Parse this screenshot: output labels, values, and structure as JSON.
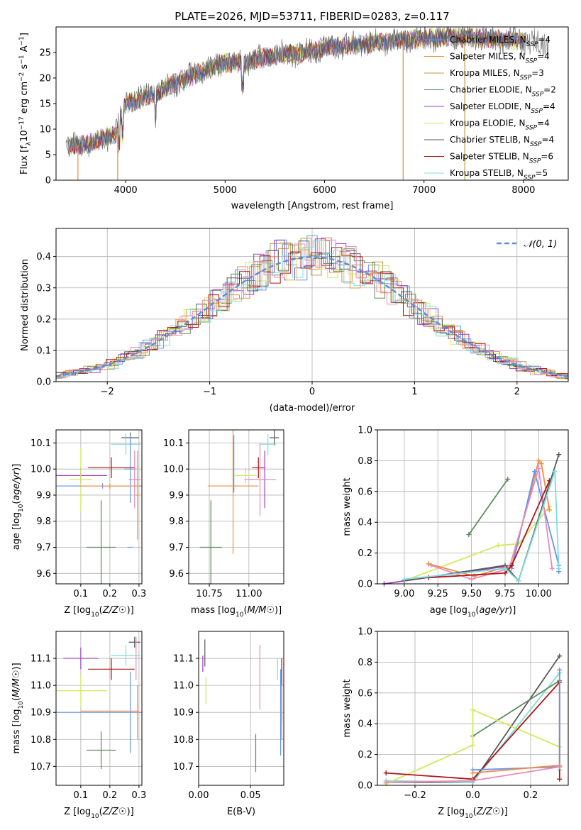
{
  "colors": {
    "Chabrier MILES": "#6495ed",
    "Salpeter MILES": "#f28c45",
    "Kroupa MILES": "#c29a3a",
    "Chabrier ELODIE": "#5c8c5c",
    "Salpeter ELODIE": "#9a3ec0",
    "Kroupa ELODIE": "#d4e85a",
    "Chabrier STELIB": "#595959",
    "Salpeter STELIB": "#b01414",
    "Kroupa STELIB": "#7fdcdc",
    "pink": "#e88ab8",
    "normal": "#5b8fd6"
  },
  "chart_data": [
    {
      "id": "spectrum",
      "type": "line",
      "title": "PLATE=2026, MJD=53711, FIBERID=0283, z=0.117",
      "xlabel": "wavelength [Angstrom, rest frame]",
      "ylabel_parts": [
        "Flux [f",
        "λ",
        "10",
        "−17",
        " erg cm",
        "−2",
        " s",
        "−1",
        " A",
        "−1",
        "]"
      ],
      "xlim": [
        3300,
        8450
      ],
      "ylim": [
        0,
        30
      ],
      "xticks": [
        4000,
        5000,
        6000,
        7000,
        8000
      ],
      "yticks": [
        0,
        5,
        10,
        15,
        20,
        25
      ],
      "grid": false,
      "legend_position": "right",
      "legend": [
        {
          "name": "Chabrier MILES",
          "n": "4"
        },
        {
          "name": "Salpeter MILES",
          "n": "4"
        },
        {
          "name": "Kroupa MILES",
          "n": "3"
        },
        {
          "name": "Chabrier ELODIE",
          "n": "2"
        },
        {
          "name": "Salpeter ELODIE",
          "n": "4"
        },
        {
          "name": "Kroupa ELODIE",
          "n": "4"
        },
        {
          "name": "Chabrier STELIB",
          "n": "4"
        },
        {
          "name": "Salpeter STELIB",
          "n": "6"
        },
        {
          "name": "Kroupa STELIB",
          "n": "5"
        }
      ],
      "legend_sub": "SSP",
      "continuum_x": [
        3400,
        3600,
        3900,
        4000,
        4300,
        4500,
        4800,
        5000,
        5200,
        5500,
        5800,
        6000,
        6300,
        6600,
        6900,
        7200,
        7500,
        7800,
        8100,
        8250
      ],
      "continuum_y": [
        6.5,
        7,
        9,
        15,
        17,
        19,
        21.5,
        23,
        23,
        24.5,
        25,
        26,
        26.5,
        27,
        27.5,
        28,
        28,
        27.5,
        27,
        26.5
      ],
      "spikes": [
        {
          "x": 3520,
          "name": "Salpeter MILES"
        },
        {
          "x": 3920,
          "name": "Kroupa MILES"
        },
        {
          "x": 6790,
          "name": "Kroupa MILES"
        },
        {
          "x": 7410,
          "name": "Kroupa MILES"
        }
      ]
    },
    {
      "id": "residual-histogram",
      "type": "line",
      "xlabel": "(data-model)/error",
      "ylabel": "Normed distribution",
      "xlim": [
        -2.5,
        2.5
      ],
      "ylim": [
        0,
        0.49
      ],
      "xticks": [
        -2,
        -1,
        0,
        1,
        2
      ],
      "yticks": [
        0,
        0.1,
        0.2,
        0.3,
        0.4
      ],
      "grid": true,
      "legend_position": "top-right",
      "legend": [
        {
          "name": "𝒩(0, 1)"
        }
      ],
      "bin_width": 0.1
    },
    {
      "id": "age-vs-Z",
      "type": "scatter",
      "xlabel": "Z [log10(Z/Z☉)]",
      "ylabel": "age  [log10(age/yr)]",
      "xlim": [
        0.015,
        0.31
      ],
      "ylim": [
        9.56,
        10.15
      ],
      "xticks": [
        0.1,
        0.2,
        0.3
      ],
      "yticks": [
        9.6,
        9.7,
        9.8,
        9.9,
        10.0,
        10.1
      ],
      "grid": true,
      "points": [
        {
          "x": 0.27,
          "y": 10.12,
          "xerr": 0.03,
          "yerr": 0.02,
          "name": "Chabrier STELIB"
        },
        {
          "x": 0.255,
          "y": 10.095,
          "xerr": 0.05,
          "yerr": 0.04,
          "name": "Kroupa STELIB"
        },
        {
          "x": 0.27,
          "y": 10.0,
          "xerr": 0.02,
          "yerr": 0.13,
          "name": "Chabrier MILES"
        },
        {
          "x": 0.205,
          "y": 10.005,
          "xerr": 0.08,
          "yerr": 0.04,
          "name": "Salpeter STELIB"
        },
        {
          "x": 0.285,
          "y": 9.96,
          "xerr": 0.02,
          "yerr": 0.11,
          "name": "pink"
        },
        {
          "x": 0.1,
          "y": 9.975,
          "xerr": 0.09,
          "yerr": 0.03,
          "name": "Salpeter ELODIE"
        },
        {
          "x": 0.1,
          "y": 9.96,
          "xerr": 0.04,
          "yerr": 0.12,
          "name": "Kroupa ELODIE"
        },
        {
          "x": 0.175,
          "y": 9.935,
          "xerr": 0.16,
          "yerr": 0.01,
          "name": "Chabrier MILES"
        },
        {
          "x": 0.2,
          "y": 9.935,
          "xerr": 0.1,
          "yerr": 0.01,
          "name": "Salpeter MILES"
        },
        {
          "x": 0.295,
          "y": 9.9,
          "xerr": 0.005,
          "yerr": 0.17,
          "name": "Salpeter MILES"
        },
        {
          "x": 0.17,
          "y": 9.7,
          "xerr": 0.05,
          "yerr": 0.18,
          "name": "Chabrier ELODIE"
        },
        {
          "x": 0.27,
          "y": 9.7,
          "xerr": 0.01,
          "yerr": 0.0,
          "name": "Chabrier MILES"
        }
      ]
    },
    {
      "id": "age-vs-mass",
      "type": "scatter",
      "xlabel": "mass [log10(M/M☉)]",
      "ylabel": "",
      "xlim": [
        10.62,
        11.22
      ],
      "ylim": [
        9.56,
        10.15
      ],
      "xticks": [
        10.75,
        11.0
      ],
      "yticks": [
        9.6,
        9.7,
        9.8,
        9.9,
        10.0,
        10.1
      ],
      "grid": true,
      "points": [
        {
          "x": 11.16,
          "y": 10.12,
          "xerr": 0.03,
          "yerr": 0.03,
          "name": "Chabrier STELIB"
        },
        {
          "x": 11.12,
          "y": 10.095,
          "xerr": 0.05,
          "yerr": 0.04,
          "name": "Kroupa STELIB"
        },
        {
          "x": 10.905,
          "y": 10.02,
          "xerr": 0.0,
          "yerr": 0.11,
          "name": "Chabrier MILES"
        },
        {
          "x": 11.06,
          "y": 10.005,
          "xerr": 0.04,
          "yerr": 0.04,
          "name": "Salpeter STELIB"
        },
        {
          "x": 11.1,
          "y": 9.96,
          "xerr": 0.0,
          "yerr": 0.11,
          "name": "Salpeter ELODIE"
        },
        {
          "x": 11.07,
          "y": 9.96,
          "xerr": 0.1,
          "yerr": 0.14,
          "name": "pink"
        },
        {
          "x": 10.98,
          "y": 9.975,
          "xerr": 0.07,
          "yerr": 0.03,
          "name": "Kroupa ELODIE"
        },
        {
          "x": 10.9,
          "y": 9.935,
          "xerr": 0.16,
          "yerr": 0.26,
          "name": "Salpeter MILES"
        },
        {
          "x": 10.76,
          "y": 9.7,
          "xerr": 0.07,
          "yerr": 0.18,
          "name": "Chabrier ELODIE"
        }
      ]
    },
    {
      "id": "mass-weight-vs-age",
      "type": "line",
      "xlabel": "age  [log10(age/yr)]",
      "ylabel": "mass weight",
      "xlim": [
        8.8,
        10.22
      ],
      "ylim": [
        0,
        1
      ],
      "xticks": [
        9.0,
        9.25,
        9.5,
        9.75,
        10.0
      ],
      "yticks": [
        0,
        0.2,
        0.4,
        0.6,
        0.8,
        1.0
      ],
      "grid": true,
      "series": [
        {
          "name": "Chabrier ELODIE",
          "x": [
            9.48,
            9.77
          ],
          "y": [
            0.32,
            0.68
          ]
        },
        {
          "name": "Salpeter ELODIE",
          "x": [
            8.85,
            9.8
          ],
          "y": [
            0.0,
            0.12
          ]
        },
        {
          "name": "Kroupa ELODIE",
          "x": [
            9.0,
            9.7,
            9.85,
            10.08
          ],
          "y": [
            0.02,
            0.25,
            0.26,
            0.5
          ]
        },
        {
          "name": "Salpeter MILES",
          "x": [
            9.18,
            9.52,
            9.8,
            10.0,
            10.02,
            10.08
          ],
          "y": [
            0.13,
            0.05,
            0.12,
            0.8,
            0.78,
            0.48
          ]
        },
        {
          "name": "Chabrier MILES",
          "x": [
            9.8,
            9.97,
            10.15,
            10.15
          ],
          "y": [
            0.1,
            0.73,
            0.12,
            0.08
          ]
        },
        {
          "name": "pink",
          "x": [
            9.2,
            9.5,
            9.78,
            10.0,
            10.1
          ],
          "y": [
            0.12,
            0.03,
            0.1,
            0.75,
            0.1
          ]
        },
        {
          "name": "Salpeter STELIB",
          "x": [
            9.18,
            9.75,
            9.8,
            10.08
          ],
          "y": [
            0.04,
            0.07,
            0.12,
            0.67
          ]
        },
        {
          "name": "Chabrier STELIB",
          "x": [
            9.0,
            9.75,
            9.85,
            10.15
          ],
          "y": [
            0.02,
            0.12,
            0.02,
            0.84
          ]
        },
        {
          "name": "Kroupa STELIB",
          "x": [
            9.0,
            9.75,
            9.85,
            10.12,
            10.15
          ],
          "y": [
            0.03,
            0.1,
            0.02,
            0.73,
            0.1
          ]
        }
      ]
    },
    {
      "id": "mass-vs-Z",
      "type": "scatter",
      "xlabel": "Z [log10(Z/Z☉)]",
      "ylabel": "mass [log10(M/M☉)]",
      "xlim": [
        0.015,
        0.31
      ],
      "ylim": [
        10.63,
        11.2
      ],
      "xticks": [
        0.1,
        0.2,
        0.3
      ],
      "yticks": [
        10.7,
        10.8,
        10.9,
        11.0,
        11.1
      ],
      "grid": true,
      "points": [
        {
          "x": 0.285,
          "y": 11.16,
          "xerr": 0.02,
          "yerr": 0.02,
          "name": "Chabrier STELIB"
        },
        {
          "x": 0.255,
          "y": 11.11,
          "xerr": 0.05,
          "yerr": 0.04,
          "name": "Kroupa STELIB"
        },
        {
          "x": 0.1,
          "y": 11.1,
          "xerr": 0.06,
          "yerr": 0.04,
          "name": "Salpeter ELODIE"
        },
        {
          "x": 0.29,
          "y": 11.1,
          "xerr": 0.0,
          "yerr": 0.08,
          "name": "pink"
        },
        {
          "x": 0.205,
          "y": 11.06,
          "xerr": 0.08,
          "yerr": 0.04,
          "name": "Salpeter STELIB"
        },
        {
          "x": 0.1,
          "y": 10.98,
          "xerr": 0.09,
          "yerr": 0.06,
          "name": "Kroupa ELODIE"
        },
        {
          "x": 0.27,
          "y": 10.9,
          "xerr": 0.0,
          "yerr": 0.15,
          "name": "Chabrier MILES"
        },
        {
          "x": 0.175,
          "y": 10.9,
          "xerr": 0.16,
          "yerr": 0.0,
          "name": "Chabrier MILES"
        },
        {
          "x": 0.2,
          "y": 10.905,
          "xerr": 0.1,
          "yerr": 0.0,
          "name": "Salpeter MILES"
        },
        {
          "x": 0.295,
          "y": 10.9,
          "xerr": 0.005,
          "yerr": 0.1,
          "name": "Salpeter MILES"
        },
        {
          "x": 0.17,
          "y": 10.76,
          "xerr": 0.05,
          "yerr": 0.07,
          "name": "Chabrier ELODIE"
        }
      ]
    },
    {
      "id": "mass-vs-ebv",
      "type": "scatter",
      "xlabel": "E(B-V)",
      "ylabel": "",
      "xlim": [
        0,
        0.082
      ],
      "ylim": [
        10.63,
        11.2
      ],
      "xticks": [
        0.0,
        0.05
      ],
      "xtick_labels": [
        "0.00",
        "0.05"
      ],
      "yticks": [
        10.7,
        10.8,
        10.9,
        11.0,
        11.1
      ],
      "grid": true,
      "points": [
        {
          "x": 0.006,
          "y": 11.12,
          "xerr": 0.0,
          "yerr": 0.05,
          "name": "Chabrier STELIB"
        },
        {
          "x": 0.004,
          "y": 11.08,
          "xerr": 0.0,
          "yerr": 0.03,
          "name": "Salpeter ELODIE"
        },
        {
          "x": 0.007,
          "y": 10.98,
          "xerr": 0.0,
          "yerr": 0.05,
          "name": "Kroupa ELODIE"
        },
        {
          "x": 0.059,
          "y": 11.03,
          "xerr": 0.0,
          "yerr": 0.12,
          "name": "pink"
        },
        {
          "x": 0.076,
          "y": 11.06,
          "xerr": 0.0,
          "yerr": 0.04,
          "name": "Kroupa STELIB"
        },
        {
          "x": 0.08,
          "y": 10.98,
          "xerr": 0.0,
          "yerr": 0.12,
          "name": "Salpeter STELIB"
        },
        {
          "x": 0.079,
          "y": 10.9,
          "xerr": 0.0,
          "yerr": 0.16,
          "name": "Chabrier MILES"
        },
        {
          "x": 0.08,
          "y": 10.9,
          "xerr": 0.0,
          "yerr": 0.1,
          "name": "Salpeter MILES"
        },
        {
          "x": 0.055,
          "y": 10.75,
          "xerr": 0.0,
          "yerr": 0.07,
          "name": "Chabrier ELODIE"
        }
      ]
    },
    {
      "id": "mass-weight-vs-Z",
      "type": "line",
      "xlabel": "Z [log10(Z/Z☉)]",
      "ylabel": "mass weight",
      "xlim": [
        -0.33,
        0.33
      ],
      "ylim": [
        0,
        1
      ],
      "xticks": [
        -0.2,
        0.0,
        0.2
      ],
      "yticks": [
        0,
        0.2,
        0.4,
        0.6,
        0.8,
        1.0
      ],
      "grid": true,
      "series": [
        {
          "name": "Chabrier STELIB",
          "x": [
            -0.3,
            0.0,
            0.3
          ],
          "y": [
            0.02,
            0.02,
            0.84
          ]
        },
        {
          "name": "Kroupa STELIB",
          "x": [
            -0.3,
            0.0,
            0.3,
            0.3
          ],
          "y": [
            0.03,
            0.02,
            0.73,
            0.1
          ]
        },
        {
          "name": "Chabrier ELODIE",
          "x": [
            0.0,
            0.3
          ],
          "y": [
            0.32,
            0.68
          ]
        },
        {
          "name": "Kroupa ELODIE",
          "x": [
            -0.3,
            0.0,
            0.0,
            0.3
          ],
          "y": [
            0.01,
            0.26,
            0.49,
            0.25
          ]
        },
        {
          "name": "Salpeter STELIB",
          "x": [
            -0.3,
            0.0,
            0.3,
            0.3
          ],
          "y": [
            0.08,
            0.04,
            0.67,
            0.04
          ]
        },
        {
          "name": "Chabrier MILES",
          "x": [
            0.0,
            0.3,
            0.3
          ],
          "y": [
            0.1,
            0.12,
            0.75
          ]
        },
        {
          "name": "pink",
          "x": [
            -0.3,
            0.0,
            0.3
          ],
          "y": [
            0.02,
            0.03,
            0.12
          ]
        },
        {
          "name": "Salpeter MILES",
          "x": [
            0.0,
            0.3
          ],
          "y": [
            0.08,
            0.13
          ]
        }
      ]
    }
  ]
}
